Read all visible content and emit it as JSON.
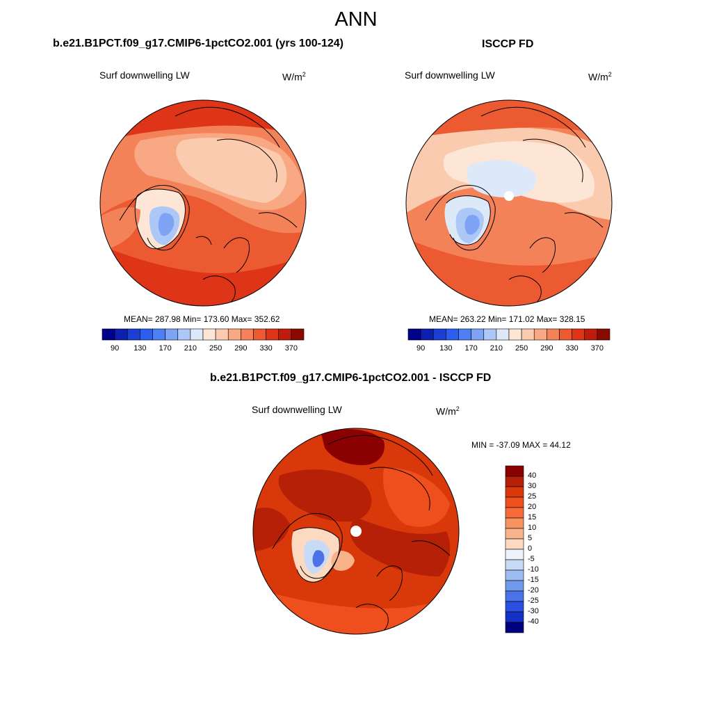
{
  "main_title": "ANN",
  "units": {
    "base": "W/m",
    "exponent": "2"
  },
  "panels": [
    {
      "title": "b.e21.B1PCT.f09_g17.CMIP6-1pctCO2.001 (yrs 100-124)",
      "variable": "Surf downwelling LW",
      "stats": "MEAN= 287.98  Min= 173.60  Max= 352.62",
      "colorbar_ticks": [
        "90",
        "130",
        "170",
        "210",
        "250",
        "290",
        "330",
        "370"
      ]
    },
    {
      "title": "ISCCP FD",
      "variable": "Surf downwelling LW",
      "stats": "MEAN= 263.22  Min= 171.02  Max= 328.15",
      "colorbar_ticks": [
        "90",
        "130",
        "170",
        "210",
        "250",
        "290",
        "330",
        "370"
      ]
    },
    {
      "title": "b.e21.B1PCT.f09_g17.CMIP6-1pctCO2.001 - ISCCP FD",
      "variable": "Surf downwelling LW",
      "stats": "MIN = -37.09 MAX =  44.12",
      "colorbar_ticks": [
        "40",
        "30",
        "25",
        "20",
        "15",
        "10",
        "5",
        "0",
        "-5",
        "-10",
        "-15",
        "-20",
        "-25",
        "-30",
        "-40"
      ]
    }
  ],
  "colors": {
    "abs_scale": [
      "#00008b",
      "#0c1fae",
      "#1a3fd2",
      "#2c5ff0",
      "#4d7ff5",
      "#7ea2f4",
      "#adc8f6",
      "#dde9f8",
      "#fde6d6",
      "#fbcbaf",
      "#f8a983",
      "#f48259",
      "#ec5a32",
      "#de3417",
      "#bd1d0a",
      "#8b0a00"
    ],
    "diff_scale": [
      "#8b0000",
      "#b52006",
      "#d9380b",
      "#ee4f1c",
      "#f56b3a",
      "#f8925f",
      "#f9b38a",
      "#fcd9c0",
      "#eef3fb",
      "#c7dbf6",
      "#9dbcf1",
      "#7199ec",
      "#4c72e8",
      "#2b4fe0",
      "#1430c6",
      "#000080"
    ]
  },
  "chart_data": [
    {
      "type": "heatmap",
      "projection": "north-polar-stereographic",
      "title": "b.e21.B1PCT.f09_g17.CMIP6-1pctCO2.001 (yrs 100-124)",
      "variable": "Surf downwelling LW",
      "units": "W/m2",
      "mean": 287.98,
      "min": 173.6,
      "max": 352.62,
      "levels": [
        90,
        110,
        130,
        150,
        170,
        190,
        210,
        230,
        250,
        270,
        290,
        310,
        330,
        350,
        370
      ],
      "colorbar_labels": [
        90,
        130,
        170,
        210,
        250,
        290,
        330,
        370
      ]
    },
    {
      "type": "heatmap",
      "projection": "north-polar-stereographic",
      "title": "ISCCP FD",
      "variable": "Surf downwelling LW",
      "units": "W/m2",
      "mean": 263.22,
      "min": 171.02,
      "max": 328.15,
      "levels": [
        90,
        110,
        130,
        150,
        170,
        190,
        210,
        230,
        250,
        270,
        290,
        310,
        330,
        350,
        370
      ],
      "colorbar_labels": [
        90,
        130,
        170,
        210,
        250,
        290,
        330,
        370
      ]
    },
    {
      "type": "heatmap",
      "projection": "north-polar-stereographic",
      "title": "b.e21.B1PCT.f09_g17.CMIP6-1pctCO2.001 - ISCCP FD",
      "variable": "Surf downwelling LW",
      "units": "W/m2",
      "min": -37.09,
      "max": 44.12,
      "levels": [
        -40,
        -30,
        -25,
        -20,
        -15,
        -10,
        -5,
        0,
        5,
        10,
        15,
        20,
        25,
        30,
        40
      ],
      "colorbar_labels": [
        40,
        30,
        25,
        20,
        15,
        10,
        5,
        0,
        -5,
        -10,
        -15,
        -20,
        -25,
        -30,
        -40
      ]
    }
  ]
}
